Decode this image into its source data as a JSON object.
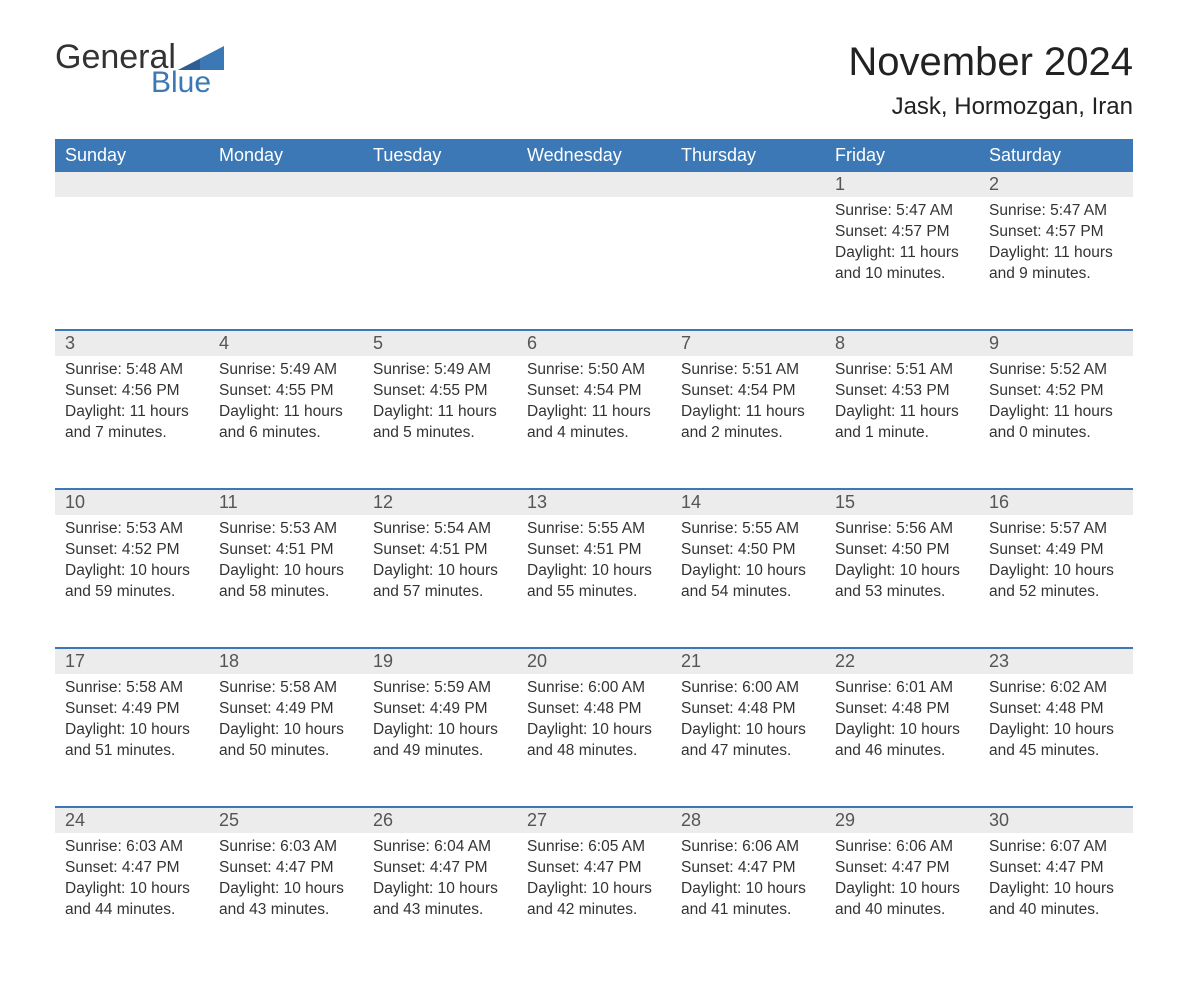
{
  "logo": {
    "word1": "General",
    "word2": "Blue"
  },
  "title": "November 2024",
  "location": "Jask, Hormozgan, Iran",
  "columns": [
    "Sunday",
    "Monday",
    "Tuesday",
    "Wednesday",
    "Thursday",
    "Friday",
    "Saturday"
  ],
  "colors": {
    "header_bg": "#3b78b5",
    "header_text": "#ffffff",
    "daynum_bg": "#ececec",
    "daynum_border": "#3b78b5",
    "body_text": "#333333",
    "logo_accent": "#3b78b5"
  },
  "weeks": [
    [
      null,
      null,
      null,
      null,
      null,
      {
        "n": "1",
        "sunrise": "Sunrise: 5:47 AM",
        "sunset": "Sunset: 4:57 PM",
        "daylight": "Daylight: 11 hours and 10 minutes."
      },
      {
        "n": "2",
        "sunrise": "Sunrise: 5:47 AM",
        "sunset": "Sunset: 4:57 PM",
        "daylight": "Daylight: 11 hours and 9 minutes."
      }
    ],
    [
      {
        "n": "3",
        "sunrise": "Sunrise: 5:48 AM",
        "sunset": "Sunset: 4:56 PM",
        "daylight": "Daylight: 11 hours and 7 minutes."
      },
      {
        "n": "4",
        "sunrise": "Sunrise: 5:49 AM",
        "sunset": "Sunset: 4:55 PM",
        "daylight": "Daylight: 11 hours and 6 minutes."
      },
      {
        "n": "5",
        "sunrise": "Sunrise: 5:49 AM",
        "sunset": "Sunset: 4:55 PM",
        "daylight": "Daylight: 11 hours and 5 minutes."
      },
      {
        "n": "6",
        "sunrise": "Sunrise: 5:50 AM",
        "sunset": "Sunset: 4:54 PM",
        "daylight": "Daylight: 11 hours and 4 minutes."
      },
      {
        "n": "7",
        "sunrise": "Sunrise: 5:51 AM",
        "sunset": "Sunset: 4:54 PM",
        "daylight": "Daylight: 11 hours and 2 minutes."
      },
      {
        "n": "8",
        "sunrise": "Sunrise: 5:51 AM",
        "sunset": "Sunset: 4:53 PM",
        "daylight": "Daylight: 11 hours and 1 minute."
      },
      {
        "n": "9",
        "sunrise": "Sunrise: 5:52 AM",
        "sunset": "Sunset: 4:52 PM",
        "daylight": "Daylight: 11 hours and 0 minutes."
      }
    ],
    [
      {
        "n": "10",
        "sunrise": "Sunrise: 5:53 AM",
        "sunset": "Sunset: 4:52 PM",
        "daylight": "Daylight: 10 hours and 59 minutes."
      },
      {
        "n": "11",
        "sunrise": "Sunrise: 5:53 AM",
        "sunset": "Sunset: 4:51 PM",
        "daylight": "Daylight: 10 hours and 58 minutes."
      },
      {
        "n": "12",
        "sunrise": "Sunrise: 5:54 AM",
        "sunset": "Sunset: 4:51 PM",
        "daylight": "Daylight: 10 hours and 57 minutes."
      },
      {
        "n": "13",
        "sunrise": "Sunrise: 5:55 AM",
        "sunset": "Sunset: 4:51 PM",
        "daylight": "Daylight: 10 hours and 55 minutes."
      },
      {
        "n": "14",
        "sunrise": "Sunrise: 5:55 AM",
        "sunset": "Sunset: 4:50 PM",
        "daylight": "Daylight: 10 hours and 54 minutes."
      },
      {
        "n": "15",
        "sunrise": "Sunrise: 5:56 AM",
        "sunset": "Sunset: 4:50 PM",
        "daylight": "Daylight: 10 hours and 53 minutes."
      },
      {
        "n": "16",
        "sunrise": "Sunrise: 5:57 AM",
        "sunset": "Sunset: 4:49 PM",
        "daylight": "Daylight: 10 hours and 52 minutes."
      }
    ],
    [
      {
        "n": "17",
        "sunrise": "Sunrise: 5:58 AM",
        "sunset": "Sunset: 4:49 PM",
        "daylight": "Daylight: 10 hours and 51 minutes."
      },
      {
        "n": "18",
        "sunrise": "Sunrise: 5:58 AM",
        "sunset": "Sunset: 4:49 PM",
        "daylight": "Daylight: 10 hours and 50 minutes."
      },
      {
        "n": "19",
        "sunrise": "Sunrise: 5:59 AM",
        "sunset": "Sunset: 4:49 PM",
        "daylight": "Daylight: 10 hours and 49 minutes."
      },
      {
        "n": "20",
        "sunrise": "Sunrise: 6:00 AM",
        "sunset": "Sunset: 4:48 PM",
        "daylight": "Daylight: 10 hours and 48 minutes."
      },
      {
        "n": "21",
        "sunrise": "Sunrise: 6:00 AM",
        "sunset": "Sunset: 4:48 PM",
        "daylight": "Daylight: 10 hours and 47 minutes."
      },
      {
        "n": "22",
        "sunrise": "Sunrise: 6:01 AM",
        "sunset": "Sunset: 4:48 PM",
        "daylight": "Daylight: 10 hours and 46 minutes."
      },
      {
        "n": "23",
        "sunrise": "Sunrise: 6:02 AM",
        "sunset": "Sunset: 4:48 PM",
        "daylight": "Daylight: 10 hours and 45 minutes."
      }
    ],
    [
      {
        "n": "24",
        "sunrise": "Sunrise: 6:03 AM",
        "sunset": "Sunset: 4:47 PM",
        "daylight": "Daylight: 10 hours and 44 minutes."
      },
      {
        "n": "25",
        "sunrise": "Sunrise: 6:03 AM",
        "sunset": "Sunset: 4:47 PM",
        "daylight": "Daylight: 10 hours and 43 minutes."
      },
      {
        "n": "26",
        "sunrise": "Sunrise: 6:04 AM",
        "sunset": "Sunset: 4:47 PM",
        "daylight": "Daylight: 10 hours and 43 minutes."
      },
      {
        "n": "27",
        "sunrise": "Sunrise: 6:05 AM",
        "sunset": "Sunset: 4:47 PM",
        "daylight": "Daylight: 10 hours and 42 minutes."
      },
      {
        "n": "28",
        "sunrise": "Sunrise: 6:06 AM",
        "sunset": "Sunset: 4:47 PM",
        "daylight": "Daylight: 10 hours and 41 minutes."
      },
      {
        "n": "29",
        "sunrise": "Sunrise: 6:06 AM",
        "sunset": "Sunset: 4:47 PM",
        "daylight": "Daylight: 10 hours and 40 minutes."
      },
      {
        "n": "30",
        "sunrise": "Sunrise: 6:07 AM",
        "sunset": "Sunset: 4:47 PM",
        "daylight": "Daylight: 10 hours and 40 minutes."
      }
    ]
  ]
}
